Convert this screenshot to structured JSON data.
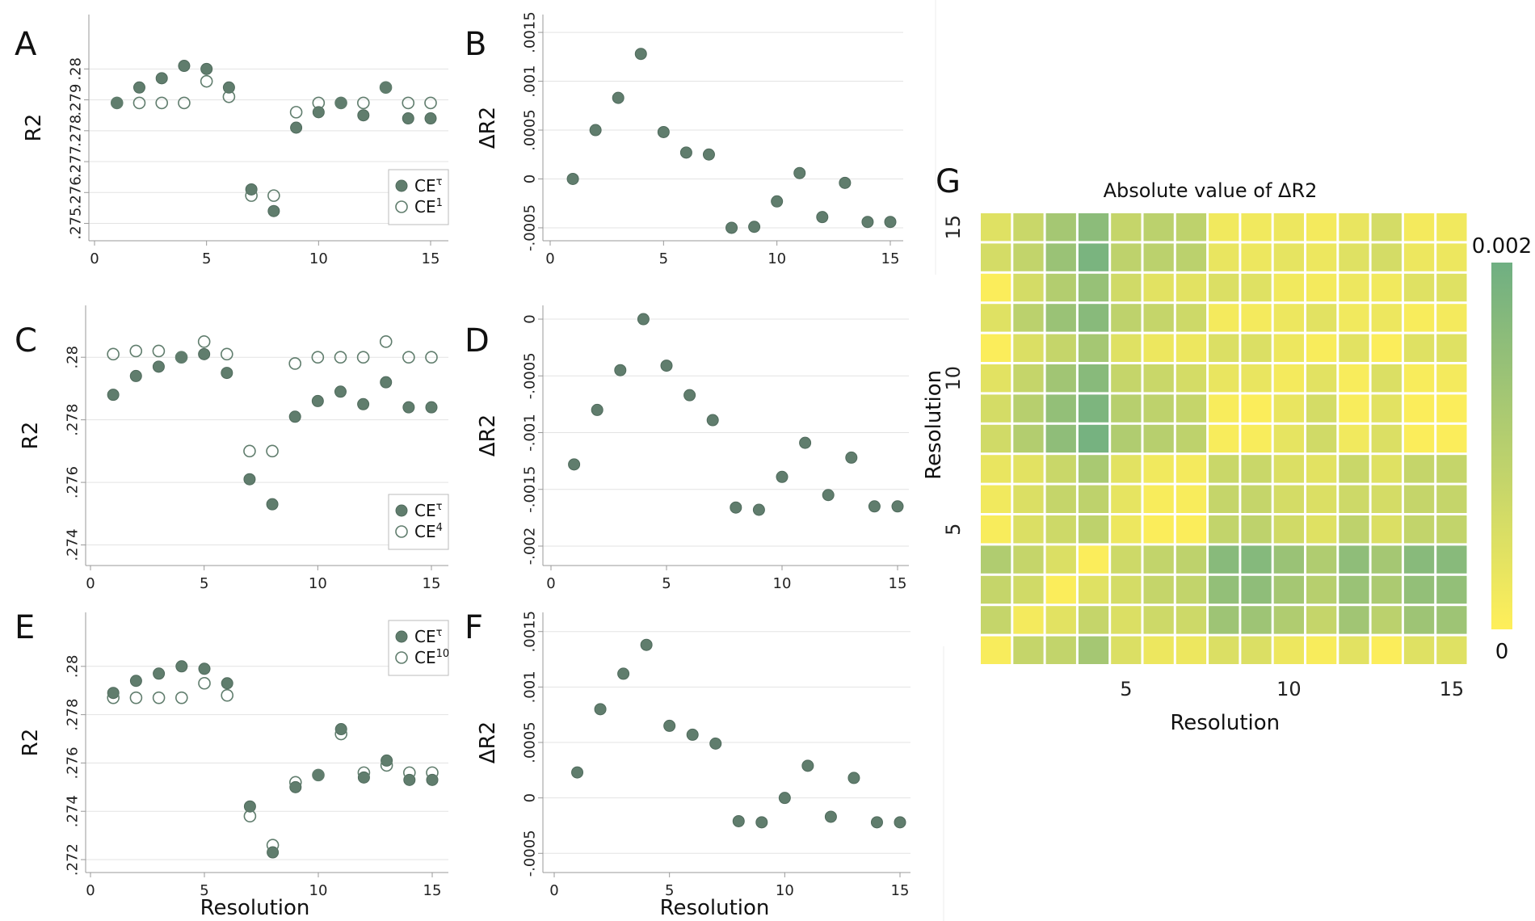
{
  "chart_data": [
    {
      "id": "A",
      "type": "scatter",
      "panel_label": "A",
      "xlabel": "",
      "ylabel": "R2",
      "xlim": [
        0,
        15
      ],
      "ylim": [
        0.2747,
        0.2815
      ],
      "xticks": [
        0,
        5,
        10,
        15
      ],
      "yticks": [
        0.275,
        0.276,
        0.277,
        0.278,
        0.279,
        0.28
      ],
      "ytick_labels": [
        ".275",
        ".276",
        ".277",
        ".278",
        ".279",
        ".28"
      ],
      "legend_position": "bottom-right",
      "series": [
        {
          "name": "CEτ",
          "label_main": "CE",
          "label_sup": "τ",
          "style": "filled",
          "x": [
            1,
            2,
            3,
            4,
            5,
            6,
            7,
            8,
            9,
            10,
            11,
            12,
            13,
            14,
            15
          ],
          "y": [
            0.2789,
            0.2794,
            0.2797,
            0.2801,
            0.28,
            0.2794,
            0.2761,
            0.2754,
            0.2781,
            0.2786,
            0.2789,
            0.2785,
            0.2794,
            0.2784,
            0.2784
          ]
        },
        {
          "name": "CE1",
          "label_main": "CE",
          "label_sup": "1",
          "style": "hollow",
          "x": [
            1,
            2,
            3,
            4,
            5,
            6,
            7,
            8,
            9,
            10,
            11,
            12,
            13,
            14,
            15
          ],
          "y": [
            0.2789,
            0.2789,
            0.2789,
            0.2789,
            0.2796,
            0.2791,
            0.2759,
            0.2759,
            0.2786,
            0.2789,
            0.2789,
            0.2789,
            0.2794,
            0.2789,
            0.2789
          ]
        }
      ]
    },
    {
      "id": "B",
      "type": "scatter",
      "panel_label": "B",
      "xlabel": "",
      "ylabel": "ΔR2",
      "xlim": [
        0,
        15
      ],
      "ylim": [
        -0.00055,
        0.0016
      ],
      "xticks": [
        0,
        5,
        10,
        15
      ],
      "yticks": [
        -0.0005,
        0,
        0.0005,
        0.001,
        0.0015
      ],
      "ytick_labels": [
        "-.0005",
        "0",
        ".0005",
        ".001",
        ".0015"
      ],
      "series": [
        {
          "name": "ΔR2",
          "style": "filled",
          "x": [
            1,
            2,
            3,
            4,
            5,
            6,
            7,
            8,
            9,
            10,
            11,
            12,
            13,
            14,
            15
          ],
          "y": [
            0.0,
            0.0005,
            0.00083,
            0.00128,
            0.00048,
            0.00027,
            0.00025,
            -0.0005,
            -0.00049,
            -0.00023,
            6e-05,
            -0.00039,
            -4e-05,
            -0.00044,
            -0.00044
          ]
        }
      ]
    },
    {
      "id": "C",
      "type": "scatter",
      "panel_label": "C",
      "xlabel": "",
      "ylabel": "R2",
      "xlim": [
        0,
        15
      ],
      "ylim": [
        0.2736,
        0.2814
      ],
      "xticks": [
        0,
        5,
        10,
        15
      ],
      "yticks": [
        0.274,
        0.276,
        0.278,
        0.28
      ],
      "ytick_labels": [
        ".274",
        ".276",
        ".278",
        ".28"
      ],
      "legend_position": "bottom-right",
      "series": [
        {
          "name": "CEτ",
          "label_main": "CE",
          "label_sup": "τ",
          "style": "filled",
          "x": [
            1,
            2,
            3,
            4,
            5,
            6,
            7,
            8,
            9,
            10,
            11,
            12,
            13,
            14,
            15
          ],
          "y": [
            0.2788,
            0.2794,
            0.2797,
            0.28,
            0.2801,
            0.2795,
            0.2761,
            0.2753,
            0.2781,
            0.2786,
            0.2789,
            0.2785,
            0.2792,
            0.2784,
            0.2784
          ]
        },
        {
          "name": "CE4",
          "label_main": "CE",
          "label_sup": "4",
          "style": "hollow",
          "x": [
            1,
            2,
            3,
            4,
            5,
            6,
            7,
            8,
            9,
            10,
            11,
            12,
            13,
            14,
            15
          ],
          "y": [
            0.2801,
            0.2802,
            0.2802,
            0.28,
            0.2805,
            0.2801,
            0.277,
            0.277,
            0.2798,
            0.28,
            0.28,
            0.28,
            0.2805,
            0.28,
            0.28
          ]
        }
      ]
    },
    {
      "id": "D",
      "type": "scatter",
      "panel_label": "D",
      "xlabel": "",
      "ylabel": "ΔR2",
      "xlim": [
        0,
        15
      ],
      "ylim": [
        -0.0021,
        5e-05
      ],
      "xticks": [
        0,
        5,
        10,
        15
      ],
      "yticks": [
        -0.002,
        -0.0015,
        -0.001,
        -0.0005,
        0
      ],
      "ytick_labels": [
        "-.002",
        "-.0015",
        "-.001",
        "-.0005",
        "0"
      ],
      "series": [
        {
          "name": "ΔR2",
          "style": "filled",
          "x": [
            1,
            2,
            3,
            4,
            5,
            6,
            7,
            8,
            9,
            10,
            11,
            12,
            13,
            14,
            15
          ],
          "y": [
            -0.00128,
            -0.0008,
            -0.00045,
            0.0,
            -0.00041,
            -0.00067,
            -0.00089,
            -0.00166,
            -0.00168,
            -0.00139,
            -0.00109,
            -0.00155,
            -0.00122,
            -0.00165,
            -0.00165
          ]
        }
      ]
    },
    {
      "id": "E",
      "type": "scatter",
      "panel_label": "E",
      "xlabel": "Resolution",
      "ylabel": "R2",
      "xlim": [
        0,
        15
      ],
      "ylim": [
        0.2718,
        0.2819
      ],
      "xticks": [
        0,
        5,
        10,
        15
      ],
      "yticks": [
        0.272,
        0.274,
        0.276,
        0.278,
        0.28
      ],
      "ytick_labels": [
        ".272",
        ".274",
        ".276",
        ".278",
        ".28"
      ],
      "legend_position": "top-right",
      "series": [
        {
          "name": "CEτ",
          "label_main": "CE",
          "label_sup": "τ",
          "style": "filled",
          "x": [
            1,
            2,
            3,
            4,
            5,
            6,
            7,
            8,
            9,
            10,
            11,
            12,
            13,
            14,
            15
          ],
          "y": [
            0.2789,
            0.2794,
            0.2797,
            0.28,
            0.2799,
            0.2793,
            0.2742,
            0.2723,
            0.275,
            0.2755,
            0.2774,
            0.2754,
            0.2761,
            0.2753,
            0.2753
          ]
        },
        {
          "name": "CE10",
          "label_main": "CE",
          "label_sup": "10",
          "style": "hollow",
          "x": [
            1,
            2,
            3,
            4,
            5,
            6,
            7,
            8,
            9,
            10,
            11,
            12,
            13,
            14,
            15
          ],
          "y": [
            0.2787,
            0.2787,
            0.2787,
            0.2787,
            0.2793,
            0.2788,
            0.2738,
            0.2726,
            0.2752,
            0.2755,
            0.2772,
            0.2756,
            0.2759,
            0.2756,
            0.2756
          ]
        }
      ]
    },
    {
      "id": "F",
      "type": "scatter",
      "panel_label": "F",
      "xlabel": "Resolution",
      "ylabel": "ΔR2",
      "xlim": [
        0,
        15
      ],
      "ylim": [
        -0.0006,
        0.0016
      ],
      "xticks": [
        0,
        5,
        10,
        15
      ],
      "yticks": [
        -0.0005,
        0,
        0.0005,
        0.001,
        0.0015
      ],
      "ytick_labels": [
        "-.0005",
        "0",
        ".0005",
        ".001",
        ".0015"
      ],
      "series": [
        {
          "name": "ΔR2",
          "style": "filled",
          "x": [
            1,
            2,
            3,
            4,
            5,
            6,
            7,
            8,
            9,
            10,
            11,
            12,
            13,
            14,
            15
          ],
          "y": [
            0.00023,
            0.0008,
            0.00112,
            0.00138,
            0.00065,
            0.00057,
            0.00049,
            -0.00021,
            -0.00022,
            0.0,
            0.00029,
            -0.00017,
            0.00018,
            -0.00022,
            -0.00022
          ]
        }
      ]
    },
    {
      "id": "G",
      "type": "heatmap",
      "panel_label": "G",
      "title": "Absolute value of ΔR2",
      "xlabel": "Resolution",
      "ylabel": "Resolution",
      "xticks": [
        5,
        10,
        15
      ],
      "yticks": [
        5,
        10,
        15
      ],
      "colorbar_max_label": "0.002",
      "colorbar_min_label": "0",
      "colorbar_min": 0,
      "colorbar_max": 0.002,
      "color_low": "#ffef5a",
      "color_high": "#6faf82",
      "rows_top_to_bottom": [
        [
          0.00045,
          0.00075,
          0.00125,
          0.0016,
          0.0008,
          0.00095,
          0.0009,
          0.0002,
          0.0002,
          0.00025,
          0.00015,
          0.0003,
          0.0006,
          0.00015,
          0.0002
        ],
        [
          0.0006,
          0.00085,
          0.0014,
          0.00185,
          0.0009,
          0.00095,
          0.00095,
          0.0003,
          0.00025,
          0.00035,
          0.00025,
          0.00045,
          0.0006,
          0.00025,
          0.00025
        ],
        [
          5e-05,
          0.0006,
          0.00105,
          0.00145,
          0.00065,
          0.0004,
          0.0004,
          0.0005,
          0.00045,
          0.0002,
          0.00015,
          0.00025,
          0.0002,
          0.00045,
          0.00045
        ],
        [
          0.00045,
          0.00095,
          0.0014,
          0.00165,
          0.0009,
          0.0008,
          0.0007,
          0.00015,
          0.00015,
          0.00025,
          0.0004,
          0.0002,
          0.00025,
          0.0001,
          0.00015
        ],
        [
          5e-05,
          0.0005,
          0.0008,
          0.00125,
          0.00045,
          0.00025,
          0.00025,
          0.0005,
          0.0005,
          0.00025,
          0.0001,
          0.0004,
          5e-05,
          0.00045,
          0.00045
        ],
        [
          0.0004,
          0.0008,
          0.0013,
          0.00165,
          0.0008,
          0.00075,
          0.0006,
          0.0003,
          0.0003,
          0.00015,
          0.0004,
          0.0001,
          0.0005,
          0.0001,
          0.00015
        ],
        [
          0.0006,
          0.001,
          0.0015,
          0.0018,
          0.001,
          0.0009,
          0.0008,
          0.0001,
          5e-05,
          0.0003,
          0.0006,
          0.0001,
          0.0004,
          5e-05,
          5e-05
        ],
        [
          0.00065,
          0.00105,
          0.00155,
          0.0019,
          0.0011,
          0.001,
          0.0009,
          0.0001,
          0.0001,
          0.00035,
          0.00065,
          0.0002,
          0.0005,
          5e-05,
          5e-05
        ],
        [
          0.0003,
          0.0004,
          0.00075,
          0.0012,
          0.0004,
          0.0002,
          0.00015,
          0.00075,
          0.00075,
          0.0005,
          0.0004,
          0.00075,
          0.00045,
          0.0008,
          0.0008
        ],
        [
          0.0002,
          0.0005,
          0.0008,
          0.0009,
          0.00035,
          0.0001,
          0.0001,
          0.0008,
          0.0008,
          0.0006,
          0.0005,
          0.0007,
          0.0006,
          0.0008,
          0.0008
        ],
        [
          0.0001,
          0.0005,
          0.0007,
          0.0009,
          0.00025,
          5e-05,
          5e-05,
          0.00085,
          0.0009,
          0.00065,
          0.00045,
          0.0009,
          0.0005,
          0.00085,
          0.00085
        ],
        [
          0.0011,
          0.0008,
          0.0005,
          5e-05,
          0.0007,
          0.00085,
          0.0009,
          0.00165,
          0.0017,
          0.0014,
          0.0011,
          0.00155,
          0.00125,
          0.00165,
          0.00165
        ],
        [
          0.0008,
          0.00065,
          5e-05,
          0.00045,
          0.0006,
          0.0008,
          0.00085,
          0.0015,
          0.00155,
          0.00125,
          0.001,
          0.0014,
          0.00115,
          0.0015,
          0.0015
        ],
        [
          0.0008,
          0.00015,
          0.0004,
          0.0008,
          0.0005,
          0.0007,
          0.0007,
          0.00135,
          0.00135,
          0.0011,
          0.0008,
          0.0013,
          0.00095,
          0.00135,
          0.00135
        ],
        [
          0.0001,
          0.0008,
          0.00085,
          0.00125,
          0.0005,
          0.00025,
          0.00025,
          0.0005,
          0.0005,
          0.00025,
          0.0001,
          0.0004,
          5e-05,
          0.00045,
          0.00045
        ]
      ]
    }
  ],
  "colors": {
    "marker": "#607d6d",
    "marker_stroke": "#4f6a5c",
    "hollow_stroke": "#607d6d"
  }
}
